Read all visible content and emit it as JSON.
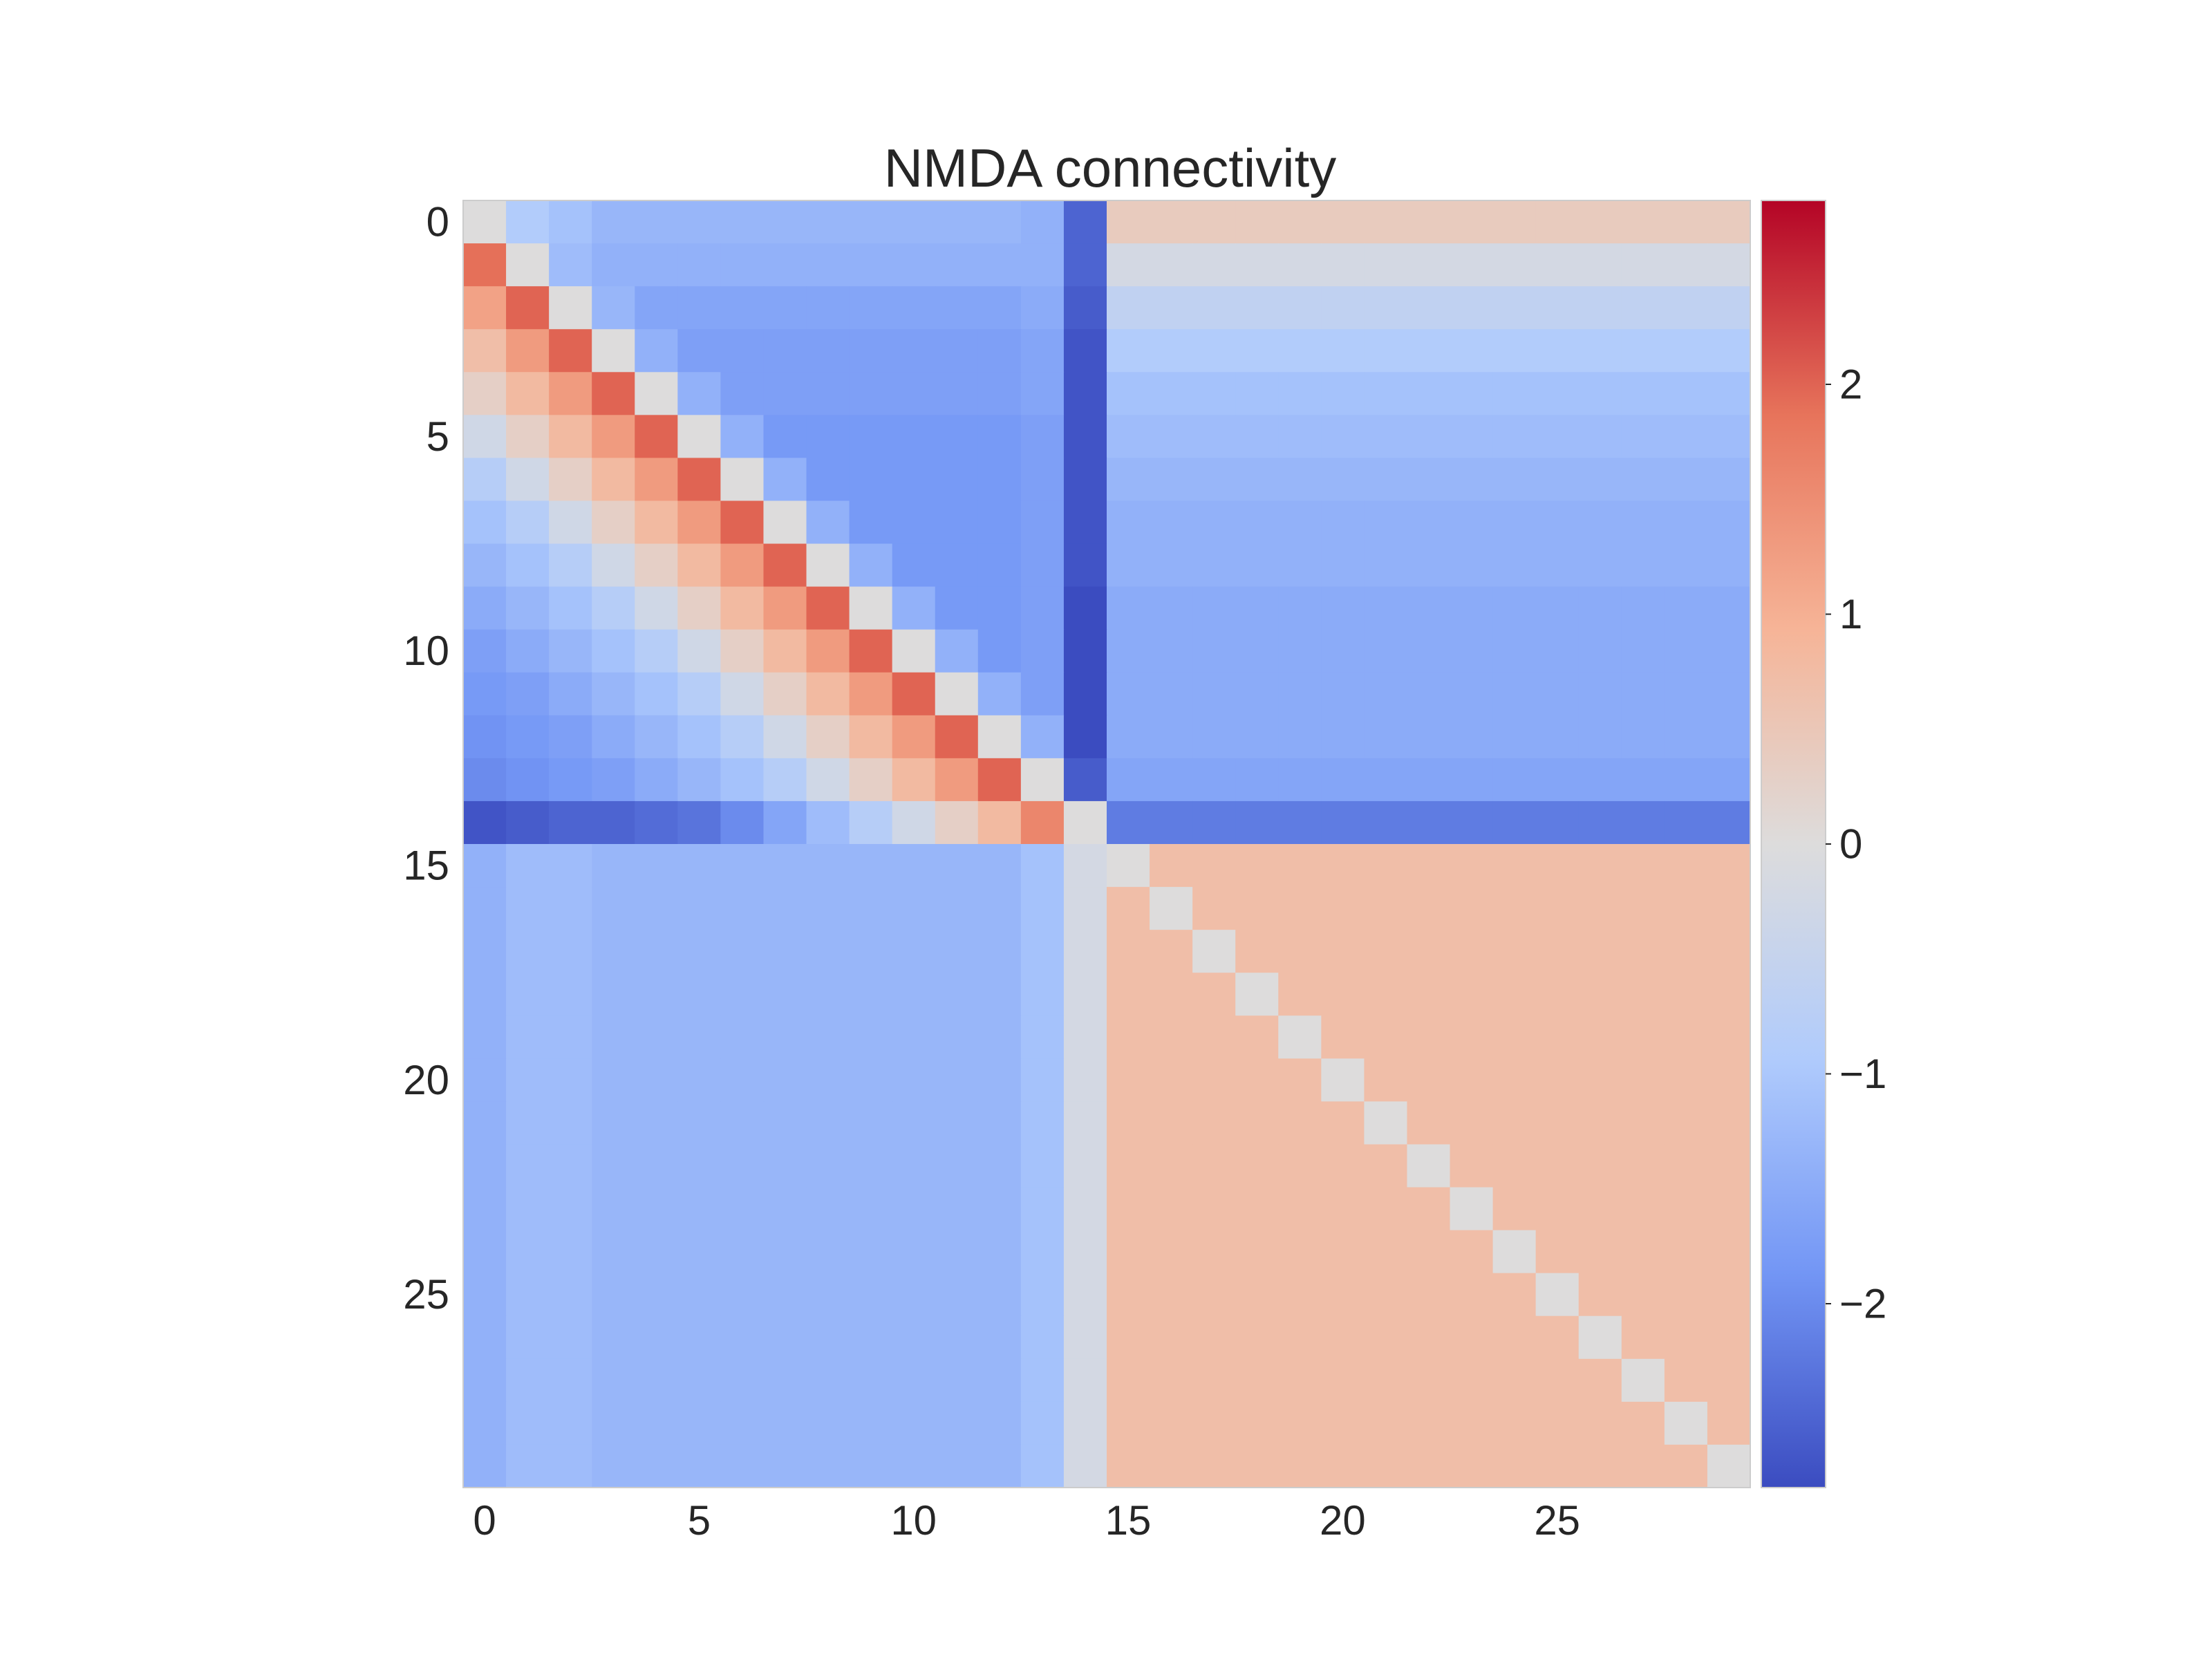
{
  "chart_data": {
    "type": "heatmap",
    "title": "NMDA connectivity",
    "xlabel": "",
    "ylabel": "",
    "rows": 30,
    "cols": 30,
    "x_ticks": [
      0,
      5,
      10,
      15,
      20,
      25
    ],
    "y_ticks": [
      0,
      5,
      10,
      15,
      20,
      25
    ],
    "colorbar": {
      "colormap": "coolwarm",
      "vmin": -2.8,
      "vmax": 2.8,
      "ticks": [
        2,
        1,
        0,
        -1,
        -2
      ],
      "tick_labels": [
        "2",
        "1",
        "0",
        "−1",
        "−2"
      ],
      "colors": [
        "#3b4cc0",
        "#7396f5",
        "#b0cbfc",
        "#dddcdc",
        "#f6b497",
        "#e7745b",
        "#b40426"
      ]
    },
    "grid": false,
    "values": [
      [
        0.0,
        -0.9,
        -1.1,
        -1.3,
        -1.3,
        -1.3,
        -1.3,
        -1.3,
        -1.3,
        -1.3,
        -1.3,
        -1.3,
        -1.3,
        -1.4,
        -2.5,
        0.4,
        0.4,
        0.4,
        0.4,
        0.4,
        0.4,
        0.4,
        0.4,
        0.4,
        0.4,
        0.4,
        0.4,
        0.4,
        0.4,
        0.4
      ],
      [
        1.9,
        0.0,
        -1.2,
        -1.4,
        -1.4,
        -1.4,
        -1.4,
        -1.4,
        -1.4,
        -1.4,
        -1.4,
        -1.4,
        -1.4,
        -1.4,
        -2.5,
        -0.2,
        -0.2,
        -0.2,
        -0.2,
        -0.2,
        -0.2,
        -0.2,
        -0.2,
        -0.2,
        -0.2,
        -0.2,
        -0.2,
        -0.2,
        -0.2,
        -0.2
      ],
      [
        1.2,
        2.0,
        0.0,
        -1.3,
        -1.6,
        -1.6,
        -1.6,
        -1.6,
        -1.6,
        -1.6,
        -1.6,
        -1.6,
        -1.6,
        -1.5,
        -2.6,
        -0.6,
        -0.6,
        -0.6,
        -0.6,
        -0.6,
        -0.6,
        -0.6,
        -0.6,
        -0.6,
        -0.6,
        -0.6,
        -0.6,
        -0.6,
        -0.6,
        -0.6
      ],
      [
        0.7,
        1.3,
        2.0,
        0.0,
        -1.4,
        -1.7,
        -1.7,
        -1.7,
        -1.7,
        -1.7,
        -1.7,
        -1.7,
        -1.7,
        -1.6,
        -2.7,
        -0.9,
        -0.9,
        -0.9,
        -0.9,
        -0.9,
        -0.9,
        -0.9,
        -0.9,
        -0.9,
        -0.9,
        -0.9,
        -0.9,
        -0.9,
        -0.9,
        -0.9
      ],
      [
        0.3,
        0.8,
        1.3,
        2.0,
        0.0,
        -1.4,
        -1.7,
        -1.7,
        -1.7,
        -1.7,
        -1.7,
        -1.7,
        -1.7,
        -1.6,
        -2.7,
        -1.1,
        -1.1,
        -1.1,
        -1.1,
        -1.1,
        -1.1,
        -1.1,
        -1.1,
        -1.1,
        -1.1,
        -1.1,
        -1.1,
        -1.1,
        -1.1,
        -1.1
      ],
      [
        -0.3,
        0.3,
        0.8,
        1.3,
        2.0,
        0.0,
        -1.4,
        -1.8,
        -1.8,
        -1.8,
        -1.8,
        -1.8,
        -1.8,
        -1.7,
        -2.7,
        -1.2,
        -1.2,
        -1.2,
        -1.2,
        -1.2,
        -1.2,
        -1.2,
        -1.2,
        -1.2,
        -1.2,
        -1.2,
        -1.2,
        -1.2,
        -1.2,
        -1.2
      ],
      [
        -0.8,
        -0.3,
        0.3,
        0.8,
        1.3,
        2.0,
        0.0,
        -1.4,
        -1.8,
        -1.8,
        -1.8,
        -1.8,
        -1.8,
        -1.7,
        -2.7,
        -1.3,
        -1.3,
        -1.3,
        -1.3,
        -1.3,
        -1.3,
        -1.3,
        -1.3,
        -1.3,
        -1.3,
        -1.3,
        -1.3,
        -1.3,
        -1.3,
        -1.3
      ],
      [
        -1.1,
        -0.8,
        -0.3,
        0.3,
        0.8,
        1.3,
        2.0,
        0.0,
        -1.4,
        -1.8,
        -1.8,
        -1.8,
        -1.8,
        -1.7,
        -2.7,
        -1.4,
        -1.4,
        -1.4,
        -1.4,
        -1.4,
        -1.4,
        -1.4,
        -1.4,
        -1.4,
        -1.4,
        -1.4,
        -1.4,
        -1.4,
        -1.4,
        -1.4
      ],
      [
        -1.3,
        -1.1,
        -0.8,
        -0.3,
        0.3,
        0.8,
        1.3,
        2.0,
        0.0,
        -1.4,
        -1.8,
        -1.8,
        -1.8,
        -1.7,
        -2.7,
        -1.4,
        -1.4,
        -1.4,
        -1.4,
        -1.4,
        -1.4,
        -1.4,
        -1.4,
        -1.4,
        -1.4,
        -1.4,
        -1.4,
        -1.4,
        -1.4,
        -1.4
      ],
      [
        -1.5,
        -1.3,
        -1.1,
        -0.8,
        -0.3,
        0.3,
        0.8,
        1.3,
        2.0,
        0.0,
        -1.4,
        -1.8,
        -1.8,
        -1.7,
        -2.8,
        -1.5,
        -1.5,
        -1.5,
        -1.5,
        -1.5,
        -1.5,
        -1.5,
        -1.5,
        -1.5,
        -1.5,
        -1.5,
        -1.5,
        -1.5,
        -1.5,
        -1.5
      ],
      [
        -1.7,
        -1.5,
        -1.3,
        -1.1,
        -0.8,
        -0.3,
        0.3,
        0.8,
        1.3,
        2.0,
        0.0,
        -1.4,
        -1.8,
        -1.7,
        -2.8,
        -1.5,
        -1.5,
        -1.5,
        -1.5,
        -1.5,
        -1.5,
        -1.5,
        -1.5,
        -1.5,
        -1.5,
        -1.5,
        -1.5,
        -1.5,
        -1.5,
        -1.5
      ],
      [
        -1.8,
        -1.7,
        -1.5,
        -1.3,
        -1.1,
        -0.8,
        -0.3,
        0.3,
        0.8,
        1.3,
        2.0,
        0.0,
        -1.4,
        -1.7,
        -2.8,
        -1.5,
        -1.5,
        -1.5,
        -1.5,
        -1.5,
        -1.5,
        -1.5,
        -1.5,
        -1.5,
        -1.5,
        -1.5,
        -1.5,
        -1.5,
        -1.5,
        -1.5
      ],
      [
        -1.9,
        -1.8,
        -1.7,
        -1.5,
        -1.3,
        -1.1,
        -0.8,
        -0.3,
        0.3,
        0.8,
        1.3,
        2.0,
        0.0,
        -1.4,
        -2.8,
        -1.5,
        -1.5,
        -1.5,
        -1.5,
        -1.5,
        -1.5,
        -1.5,
        -1.5,
        -1.5,
        -1.5,
        -1.5,
        -1.5,
        -1.5,
        -1.5,
        -1.5
      ],
      [
        -2.0,
        -1.9,
        -1.8,
        -1.7,
        -1.5,
        -1.3,
        -1.1,
        -0.8,
        -0.3,
        0.3,
        0.8,
        1.3,
        2.0,
        0.0,
        -2.6,
        -1.6,
        -1.6,
        -1.6,
        -1.6,
        -1.6,
        -1.6,
        -1.6,
        -1.6,
        -1.6,
        -1.6,
        -1.6,
        -1.6,
        -1.6,
        -1.6,
        -1.6
      ],
      [
        -2.7,
        -2.6,
        -2.5,
        -2.5,
        -2.4,
        -2.3,
        -2.0,
        -1.6,
        -1.2,
        -0.8,
        -0.3,
        0.3,
        0.8,
        1.6,
        0.0,
        -2.2,
        -2.2,
        -2.2,
        -2.2,
        -2.2,
        -2.2,
        -2.2,
        -2.2,
        -2.2,
        -2.2,
        -2.2,
        -2.2,
        -2.2,
        -2.2,
        -2.2
      ],
      [
        -1.4,
        -1.2,
        -1.2,
        -1.3,
        -1.3,
        -1.3,
        -1.3,
        -1.3,
        -1.3,
        -1.3,
        -1.3,
        -1.3,
        -1.3,
        -1.1,
        -0.2,
        0.0,
        0.7,
        0.7,
        0.7,
        0.7,
        0.7,
        0.7,
        0.7,
        0.7,
        0.7,
        0.7,
        0.7,
        0.7,
        0.7,
        0.7
      ],
      [
        -1.4,
        -1.2,
        -1.2,
        -1.3,
        -1.3,
        -1.3,
        -1.3,
        -1.3,
        -1.3,
        -1.3,
        -1.3,
        -1.3,
        -1.3,
        -1.1,
        -0.2,
        0.7,
        0.0,
        0.7,
        0.7,
        0.7,
        0.7,
        0.7,
        0.7,
        0.7,
        0.7,
        0.7,
        0.7,
        0.7,
        0.7,
        0.7
      ],
      [
        -1.4,
        -1.2,
        -1.2,
        -1.3,
        -1.3,
        -1.3,
        -1.3,
        -1.3,
        -1.3,
        -1.3,
        -1.3,
        -1.3,
        -1.3,
        -1.1,
        -0.2,
        0.7,
        0.7,
        0.0,
        0.7,
        0.7,
        0.7,
        0.7,
        0.7,
        0.7,
        0.7,
        0.7,
        0.7,
        0.7,
        0.7,
        0.7
      ],
      [
        -1.4,
        -1.2,
        -1.2,
        -1.3,
        -1.3,
        -1.3,
        -1.3,
        -1.3,
        -1.3,
        -1.3,
        -1.3,
        -1.3,
        -1.3,
        -1.1,
        -0.2,
        0.7,
        0.7,
        0.7,
        0.0,
        0.7,
        0.7,
        0.7,
        0.7,
        0.7,
        0.7,
        0.7,
        0.7,
        0.7,
        0.7,
        0.7
      ],
      [
        -1.4,
        -1.2,
        -1.2,
        -1.3,
        -1.3,
        -1.3,
        -1.3,
        -1.3,
        -1.3,
        -1.3,
        -1.3,
        -1.3,
        -1.3,
        -1.1,
        -0.2,
        0.7,
        0.7,
        0.7,
        0.7,
        0.0,
        0.7,
        0.7,
        0.7,
        0.7,
        0.7,
        0.7,
        0.7,
        0.7,
        0.7,
        0.7
      ],
      [
        -1.4,
        -1.2,
        -1.2,
        -1.3,
        -1.3,
        -1.3,
        -1.3,
        -1.3,
        -1.3,
        -1.3,
        -1.3,
        -1.3,
        -1.3,
        -1.1,
        -0.2,
        0.7,
        0.7,
        0.7,
        0.7,
        0.7,
        0.0,
        0.7,
        0.7,
        0.7,
        0.7,
        0.7,
        0.7,
        0.7,
        0.7,
        0.7
      ],
      [
        -1.4,
        -1.2,
        -1.2,
        -1.3,
        -1.3,
        -1.3,
        -1.3,
        -1.3,
        -1.3,
        -1.3,
        -1.3,
        -1.3,
        -1.3,
        -1.1,
        -0.2,
        0.7,
        0.7,
        0.7,
        0.7,
        0.7,
        0.7,
        0.0,
        0.7,
        0.7,
        0.7,
        0.7,
        0.7,
        0.7,
        0.7,
        0.7
      ],
      [
        -1.4,
        -1.2,
        -1.2,
        -1.3,
        -1.3,
        -1.3,
        -1.3,
        -1.3,
        -1.3,
        -1.3,
        -1.3,
        -1.3,
        -1.3,
        -1.1,
        -0.2,
        0.7,
        0.7,
        0.7,
        0.7,
        0.7,
        0.7,
        0.7,
        0.0,
        0.7,
        0.7,
        0.7,
        0.7,
        0.7,
        0.7,
        0.7
      ],
      [
        -1.4,
        -1.2,
        -1.2,
        -1.3,
        -1.3,
        -1.3,
        -1.3,
        -1.3,
        -1.3,
        -1.3,
        -1.3,
        -1.3,
        -1.3,
        -1.1,
        -0.2,
        0.7,
        0.7,
        0.7,
        0.7,
        0.7,
        0.7,
        0.7,
        0.7,
        0.0,
        0.7,
        0.7,
        0.7,
        0.7,
        0.7,
        0.7
      ],
      [
        -1.4,
        -1.2,
        -1.2,
        -1.3,
        -1.3,
        -1.3,
        -1.3,
        -1.3,
        -1.3,
        -1.3,
        -1.3,
        -1.3,
        -1.3,
        -1.1,
        -0.2,
        0.7,
        0.7,
        0.7,
        0.7,
        0.7,
        0.7,
        0.7,
        0.7,
        0.7,
        0.0,
        0.7,
        0.7,
        0.7,
        0.7,
        0.7
      ],
      [
        -1.4,
        -1.2,
        -1.2,
        -1.3,
        -1.3,
        -1.3,
        -1.3,
        -1.3,
        -1.3,
        -1.3,
        -1.3,
        -1.3,
        -1.3,
        -1.1,
        -0.2,
        0.7,
        0.7,
        0.7,
        0.7,
        0.7,
        0.7,
        0.7,
        0.7,
        0.7,
        0.7,
        0.0,
        0.7,
        0.7,
        0.7,
        0.7
      ],
      [
        -1.4,
        -1.2,
        -1.2,
        -1.3,
        -1.3,
        -1.3,
        -1.3,
        -1.3,
        -1.3,
        -1.3,
        -1.3,
        -1.3,
        -1.3,
        -1.1,
        -0.2,
        0.7,
        0.7,
        0.7,
        0.7,
        0.7,
        0.7,
        0.7,
        0.7,
        0.7,
        0.7,
        0.7,
        0.0,
        0.7,
        0.7,
        0.7
      ],
      [
        -1.4,
        -1.2,
        -1.2,
        -1.3,
        -1.3,
        -1.3,
        -1.3,
        -1.3,
        -1.3,
        -1.3,
        -1.3,
        -1.3,
        -1.3,
        -1.1,
        -0.2,
        0.7,
        0.7,
        0.7,
        0.7,
        0.7,
        0.7,
        0.7,
        0.7,
        0.7,
        0.7,
        0.7,
        0.7,
        0.0,
        0.7,
        0.7
      ],
      [
        -1.4,
        -1.2,
        -1.2,
        -1.3,
        -1.3,
        -1.3,
        -1.3,
        -1.3,
        -1.3,
        -1.3,
        -1.3,
        -1.3,
        -1.3,
        -1.1,
        -0.2,
        0.7,
        0.7,
        0.7,
        0.7,
        0.7,
        0.7,
        0.7,
        0.7,
        0.7,
        0.7,
        0.7,
        0.7,
        0.7,
        0.0,
        0.7
      ],
      [
        -1.4,
        -1.2,
        -1.2,
        -1.3,
        -1.3,
        -1.3,
        -1.3,
        -1.3,
        -1.3,
        -1.3,
        -1.3,
        -1.3,
        -1.3,
        -1.1,
        -0.2,
        0.7,
        0.7,
        0.7,
        0.7,
        0.7,
        0.7,
        0.7,
        0.7,
        0.7,
        0.7,
        0.7,
        0.7,
        0.7,
        0.7,
        0.0
      ]
    ]
  }
}
